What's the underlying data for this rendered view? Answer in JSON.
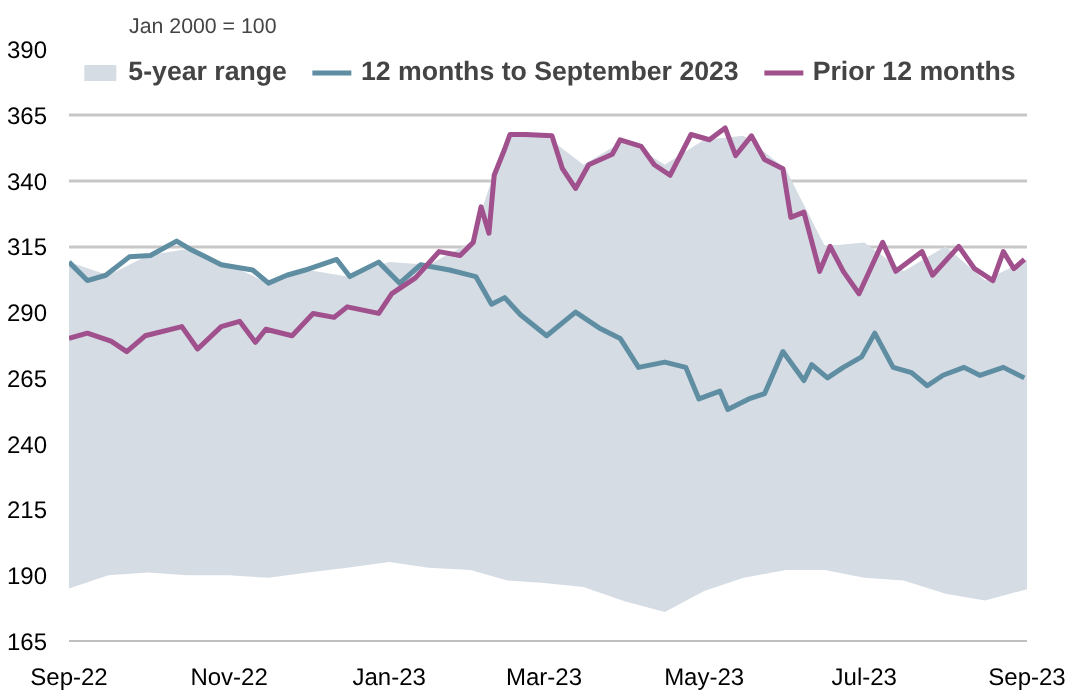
{
  "chart_data": {
    "type": "line",
    "annotations": [
      "Jan 2000 = 100"
    ],
    "xlim": [
      "2022-09-01",
      "2023-09-01"
    ],
    "xticks": [
      {
        "value": "2022-09-01",
        "label": "Sep-22"
      },
      {
        "value": "2022-11-01",
        "label": "Nov-22"
      },
      {
        "value": "2023-01-01",
        "label": "Jan-23"
      },
      {
        "value": "2023-03-01",
        "label": "Mar-23"
      },
      {
        "value": "2023-05-01",
        "label": "May-23"
      },
      {
        "value": "2023-07-01",
        "label": "Jul-23"
      },
      {
        "value": "2023-09-01",
        "label": "Sep-23"
      }
    ],
    "ylim": [
      165,
      390
    ],
    "yticks": [
      165,
      190,
      215,
      240,
      265,
      290,
      315,
      340,
      365,
      390
    ],
    "grid": "y",
    "legend": "top",
    "line_style": "solid",
    "marker": "none",
    "series": [
      {
        "name": "5-year range",
        "type": "area",
        "color": "#d5dce4",
        "x": [
          "2022-09-01",
          "2022-09-16",
          "2022-10-01",
          "2022-10-16",
          "2022-11-01",
          "2022-11-16",
          "2022-12-01",
          "2022-12-16",
          "2023-01-01",
          "2023-01-16",
          "2023-02-01",
          "2023-02-15",
          "2023-03-01",
          "2023-03-16",
          "2023-04-01",
          "2023-04-16",
          "2023-05-01",
          "2023-05-16",
          "2023-06-01",
          "2023-06-16",
          "2023-07-01",
          "2023-07-16",
          "2023-08-01",
          "2023-08-16",
          "2023-09-01"
        ],
        "values": [
          309,
          304,
          311.5,
          314,
          308,
          301,
          306,
          303.5,
          309,
          308,
          316.5,
          357.5,
          357.5,
          346,
          355.5,
          346,
          355.5,
          357,
          344.5,
          315,
          316.5,
          305.5,
          315,
          302,
          310
        ]
      },
      {
        "type": "area",
        "color": "#ffffff",
        "x": [
          "2022-09-01",
          "2022-09-16",
          "2022-10-01",
          "2022-10-16",
          "2022-11-01",
          "2022-11-16",
          "2022-12-01",
          "2022-12-16",
          "2023-01-01",
          "2023-01-16",
          "2023-02-01",
          "2023-02-15",
          "2023-03-01",
          "2023-03-16",
          "2023-04-01",
          "2023-04-16",
          "2023-05-01",
          "2023-05-16",
          "2023-06-01",
          "2023-06-16",
          "2023-07-01",
          "2023-07-16",
          "2023-08-01",
          "2023-08-16",
          "2023-09-01"
        ],
        "values": [
          185,
          190,
          191,
          190,
          190,
          189,
          191,
          192.8,
          195,
          192.8,
          192,
          188,
          187,
          185.5,
          180,
          176,
          184,
          189,
          192,
          192,
          189,
          188,
          183,
          180.4,
          184.7
        ]
      },
      {
        "name": "12 months to September 2023",
        "color": "#5f8ea3",
        "x": [
          "2022-09-01",
          "2022-09-08",
          "2022-09-15",
          "2022-09-24",
          "2022-10-02",
          "2022-10-12",
          "2022-10-17",
          "2022-10-23",
          "2022-10-29",
          "2022-11-10",
          "2022-11-16",
          "2022-11-23",
          "2022-11-30",
          "2022-12-12",
          "2022-12-17",
          "2022-12-28",
          "2023-01-05",
          "2023-01-13",
          "2023-01-24",
          "2023-02-03",
          "2023-02-09",
          "2023-02-14",
          "2023-02-20",
          "2023-03-02",
          "2023-03-13",
          "2023-03-22",
          "2023-03-30",
          "2023-04-06",
          "2023-04-16",
          "2023-04-24",
          "2023-04-29",
          "2023-05-07",
          "2023-05-10",
          "2023-05-18",
          "2023-05-24",
          "2023-05-31",
          "2023-06-08",
          "2023-06-11",
          "2023-06-17",
          "2023-06-23",
          "2023-06-30",
          "2023-07-05",
          "2023-07-12",
          "2023-07-19",
          "2023-07-25",
          "2023-07-31",
          "2023-08-08",
          "2023-08-14",
          "2023-08-23",
          "2023-08-31"
        ],
        "values": [
          309,
          302,
          304,
          311,
          311.5,
          317,
          314,
          311,
          308,
          306,
          301,
          304,
          306,
          310,
          303.5,
          309,
          301,
          308,
          306,
          303.5,
          293,
          295.5,
          289,
          281,
          290,
          284,
          280,
          269,
          271,
          269,
          257,
          260,
          253,
          257,
          259,
          275,
          264,
          270,
          265,
          269,
          273,
          282,
          269,
          267,
          262,
          266,
          269,
          266,
          269,
          265
        ]
      },
      {
        "name": "Prior 12 months",
        "color": "#a0508c",
        "x": [
          "2022-09-01",
          "2022-09-08",
          "2022-09-17",
          "2022-09-23",
          "2022-09-30",
          "2022-10-14",
          "2022-10-20",
          "2022-10-29",
          "2022-11-05",
          "2022-11-11",
          "2022-11-15",
          "2022-11-25",
          "2022-12-03",
          "2022-12-11",
          "2022-12-16",
          "2022-12-28",
          "2023-01-02",
          "2023-01-11",
          "2023-01-20",
          "2023-01-28",
          "2023-02-02",
          "2023-02-05",
          "2023-02-08",
          "2023-02-10",
          "2023-02-14",
          "2023-02-16",
          "2023-02-22",
          "2023-03-04",
          "2023-03-08",
          "2023-03-13",
          "2023-03-18",
          "2023-03-27",
          "2023-03-30",
          "2023-04-07",
          "2023-04-12",
          "2023-04-18",
          "2023-04-26",
          "2023-05-03",
          "2023-05-09",
          "2023-05-13",
          "2023-05-19",
          "2023-05-24",
          "2023-05-31",
          "2023-06-03",
          "2023-06-08",
          "2023-06-14",
          "2023-06-18",
          "2023-06-23",
          "2023-06-29",
          "2023-07-08",
          "2023-07-13",
          "2023-07-23",
          "2023-07-27",
          "2023-08-06",
          "2023-08-12",
          "2023-08-19",
          "2023-08-23",
          "2023-08-27",
          "2023-08-31"
        ],
        "values": [
          280,
          282,
          279,
          275,
          281,
          284.5,
          276,
          284.5,
          286.5,
          278.5,
          283.5,
          281,
          289.5,
          288,
          292,
          289.5,
          297,
          303,
          313,
          311.5,
          316.5,
          330,
          320,
          342,
          352,
          357.5,
          357.5,
          357,
          344.5,
          337,
          346,
          350,
          355.5,
          353,
          346,
          342,
          357.5,
          355.5,
          360,
          349.5,
          357,
          348,
          344.5,
          326,
          328,
          305.5,
          315,
          305.5,
          297,
          316.5,
          305.5,
          313,
          304,
          315,
          306.5,
          302,
          313,
          306.5,
          310
        ]
      }
    ]
  }
}
